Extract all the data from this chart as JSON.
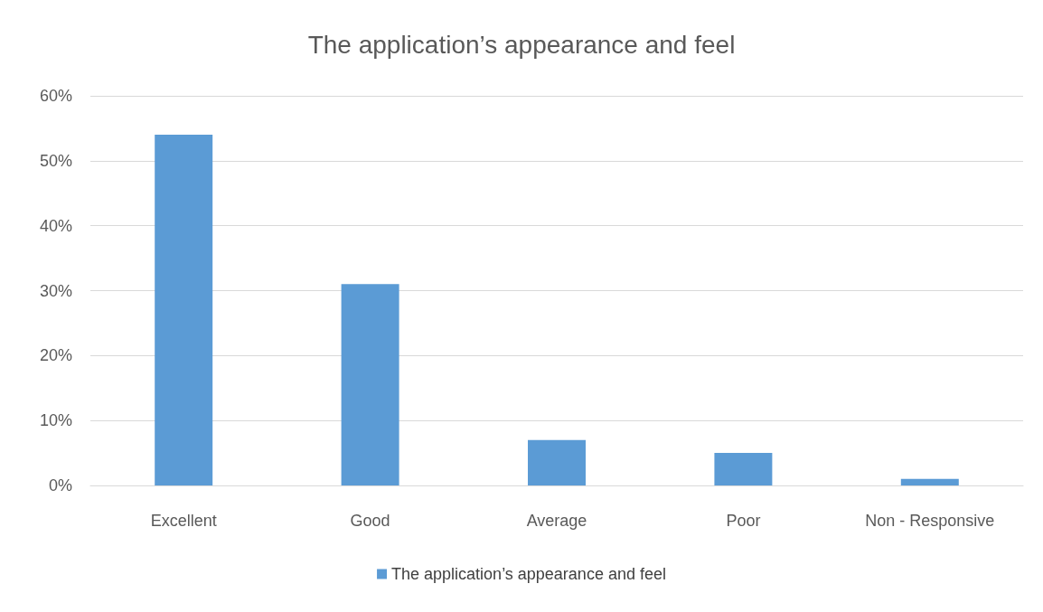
{
  "chart_data": {
    "type": "bar",
    "title": "The application’s appearance and feel",
    "categories": [
      "Excellent",
      "Good",
      "Average",
      "Poor",
      "Non - Responsive"
    ],
    "series": [
      {
        "name": "The application’s appearance and feel",
        "color": "#5b9bd5",
        "values": [
          54,
          31,
          7,
          5,
          1
        ]
      }
    ],
    "ylim": [
      0,
      60
    ],
    "yticks": [
      {
        "value": 0,
        "label": "0%"
      },
      {
        "value": 10,
        "label": "10%"
      },
      {
        "value": 20,
        "label": "20%"
      },
      {
        "value": 30,
        "label": "30%"
      },
      {
        "value": 40,
        "label": "40%"
      },
      {
        "value": 50,
        "label": "50%"
      },
      {
        "value": 60,
        "label": "60%"
      }
    ],
    "grid": "y",
    "legend": "bottom"
  }
}
